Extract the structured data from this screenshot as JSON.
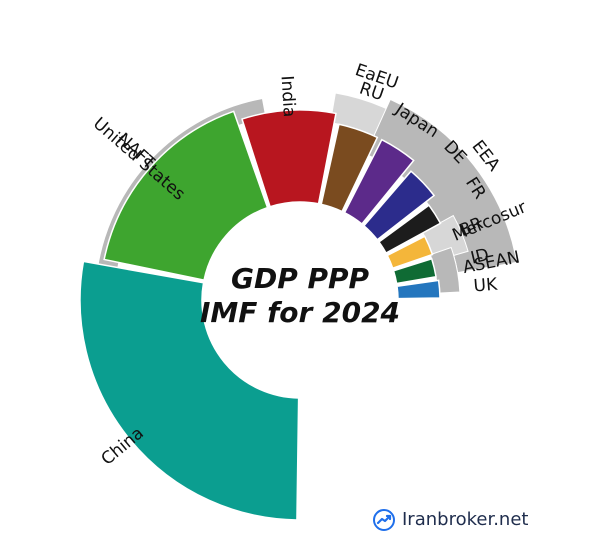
{
  "chart_data": {
    "type": "pie",
    "title_lines": [
      "GDP PPP",
      "IMF for 2024"
    ],
    "inner_slices": [
      {
        "label": "China",
        "value": 25.0,
        "color": "#0b9e90"
      },
      {
        "label": "United States",
        "value": 15.0,
        "color": "#3ea52f"
      },
      {
        "label": "India",
        "value": 7.5,
        "color": "#b8161f"
      },
      {
        "label": "RU",
        "value": 3.6,
        "color": "#7a4b1f"
      },
      {
        "label": "Japan",
        "value": 3.4,
        "color": "#5c2a8a"
      },
      {
        "label": "DE",
        "value": 3.2,
        "color": "#2c2c8c"
      },
      {
        "label": "FR",
        "value": 2.3,
        "color": "#1c1c1c"
      },
      {
        "label": "BR",
        "value": 2.4,
        "color": "#f4b63a"
      },
      {
        "label": "ID",
        "value": 2.3,
        "color": "#0f6b34"
      },
      {
        "label": "UK",
        "value": 2.2,
        "color": "#2476be"
      }
    ],
    "outer_groups": [
      {
        "label": "NAFTA",
        "value": 18.2,
        "color": "#b8b8b8"
      },
      {
        "label": "EaEU",
        "value": 4.4,
        "color": "#d7d7d7"
      },
      {
        "label": "EEA",
        "value": 15.8,
        "color": "#b8b8b8"
      },
      {
        "label": "Mercosur",
        "value": 3.5,
        "color": "#d7d7d7"
      },
      {
        "label": "ASEAN",
        "value": 6.8,
        "color": "#b8b8b8"
      }
    ]
  },
  "brand": {
    "text": "Iranbroker.net"
  }
}
